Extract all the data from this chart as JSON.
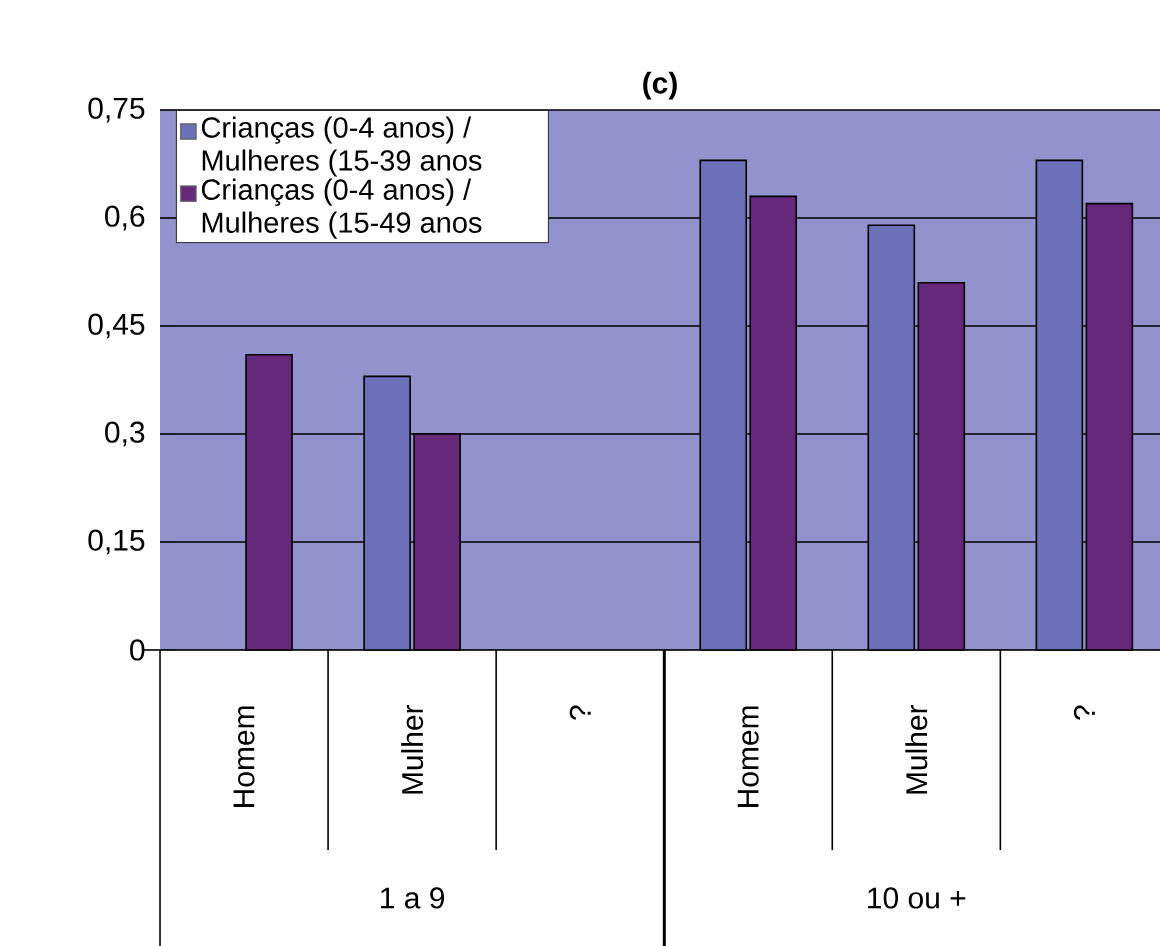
{
  "chart_data": {
    "type": "bar",
    "title": "(c)",
    "categories": [
      "Homem",
      "Mulher",
      "?",
      "Homem",
      "Mulher",
      "?"
    ],
    "series": [
      {
        "name": "Crianças (0-4 anos) / Mulheres (15-39 anos",
        "color": "#6b70b8",
        "values": [
          null,
          0.38,
          null,
          0.68,
          0.59,
          0.68
        ]
      },
      {
        "name": "Crianças (0-4 anos) / Mulheres (15-49 anos",
        "color": "#66287a",
        "values": [
          0.41,
          0.3,
          null,
          0.63,
          0.51,
          0.62
        ]
      }
    ],
    "ylim": [
      0,
      0.75
    ],
    "yticks": [
      0,
      {
        "value": 0.15,
        "label": "0,15"
      },
      {
        "value": 0.3,
        "label": "0,3"
      },
      {
        "value": 0.45,
        "label": "0,45"
      },
      {
        "value": 0.6,
        "label": "0,6"
      },
      {
        "value": 0.75,
        "label": "0,75"
      }
    ],
    "grid": "y",
    "legend": "top left",
    "annotations": [
      "1 a 9",
      "10 ou +"
    ]
  }
}
